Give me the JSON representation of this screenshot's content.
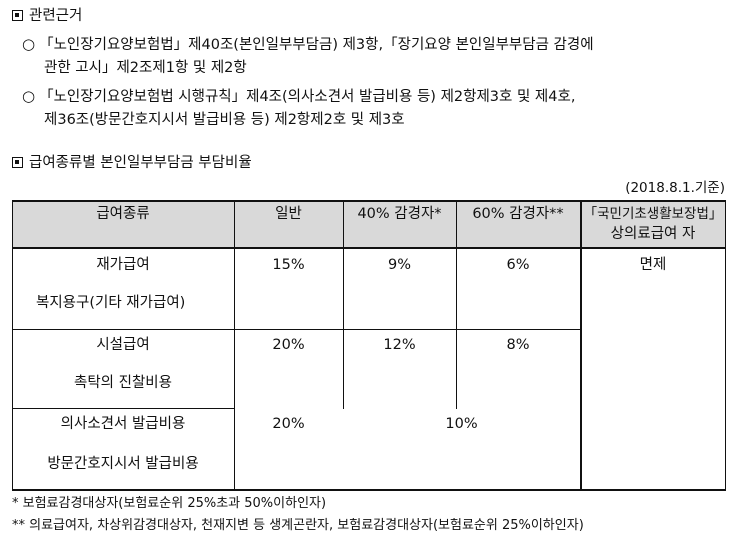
{
  "section1": {
    "title": "관련근거",
    "items": [
      {
        "line1": "「노인장기요양보험법」제40조(본인일부부담금) 제3항,「장기요양 본인일부부담금 감경에",
        "line2": "관한 고시」제2조제1항 및 제2항"
      },
      {
        "line1": "「노인장기요양보험법 시행규칙」제4조(의사소견서 발급비용 등) 제2항제3호 및 제4호,",
        "line2": "제36조(방문간호지시서 발급비용 등) 제2항제2호 및 제3호"
      }
    ]
  },
  "section2": {
    "title": "급여종류별 본인일부부담금 부담비율",
    "date": "(2018.8.1.기준)"
  },
  "table": {
    "headers": [
      "급여종류",
      "일반",
      "40% 감경자*",
      "60% 감경자**",
      "「국민기초생활보장법」",
      "상의료급여 자"
    ],
    "rows": [
      {
        "a": "재가급여",
        "b": "복지용구(기타 재가급여)",
        "general": "15%",
        "r40": "9%",
        "r60": "6%",
        "exempt": "면제"
      },
      {
        "a": "시설급여",
        "b": "촉탁의 진찰비용",
        "general": "20%",
        "r40": "12%",
        "r60": "8%"
      },
      {
        "a": "의사소견서 발급비용",
        "b": "방문간호지시서 발급비용",
        "general": "20%",
        "merged": "10%"
      }
    ]
  },
  "notes": [
    "* 보험료감경대상자(보험료순위 25%초과 50%이하인자)",
    "** 의료급여자, 차상위감경대상자, 천재지변 등 생계곤란자, 보험료감경대상자(보험료순위 25%이하인자)"
  ]
}
